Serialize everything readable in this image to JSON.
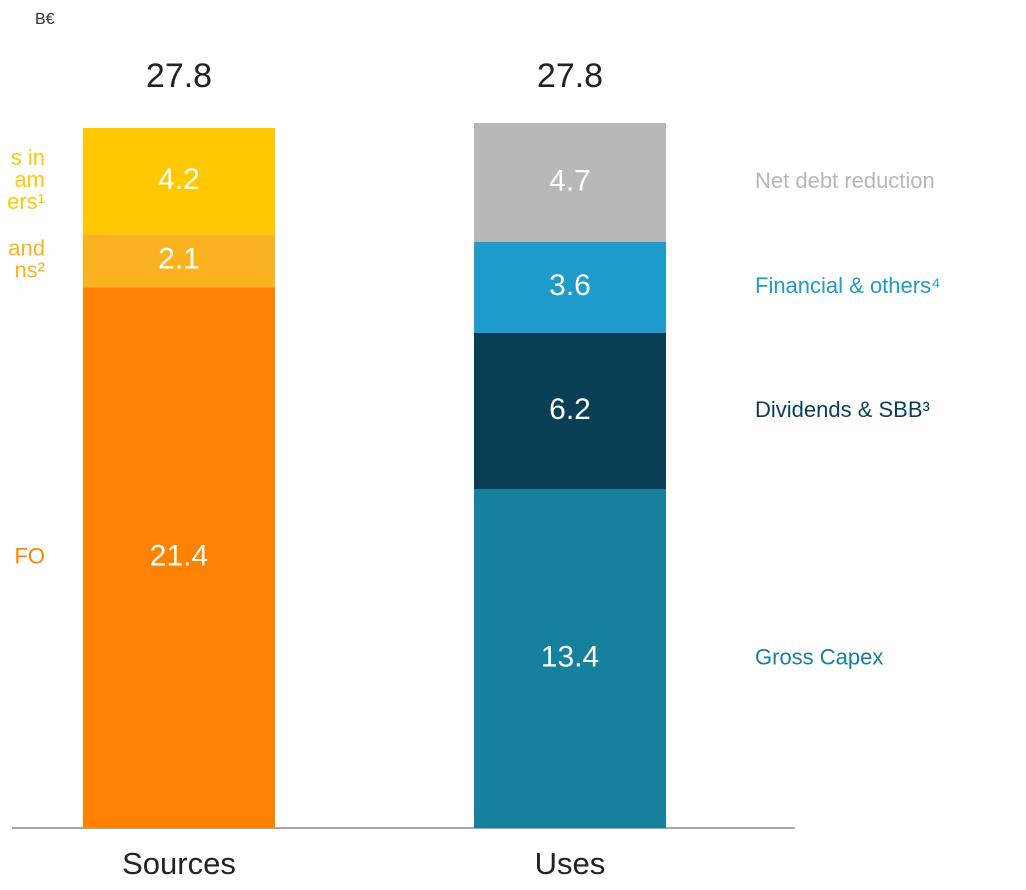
{
  "chart_data": {
    "type": "stacked_bar",
    "unit": "B€",
    "categories": [
      "Sources",
      "Uses"
    ],
    "totals": [
      27.8,
      27.8
    ],
    "ylim": [
      0,
      27.9
    ],
    "series": [
      {
        "name": "FO",
        "color": "#ff8200",
        "values": [
          21.4,
          null
        ]
      },
      {
        "name": [
          "and",
          "ns²"
        ],
        "color": "#fbb21f",
        "values": [
          2.1,
          null
        ]
      },
      {
        "name": [
          "s in",
          "am",
          "ers¹"
        ],
        "color": "#ffc800",
        "values": [
          4.2,
          null
        ]
      },
      {
        "name": "Gross Capex",
        "color": "#15819e",
        "values": [
          null,
          13.4
        ]
      },
      {
        "name": "Dividends & SBB³",
        "color": "#083f57",
        "values": [
          null,
          6.2
        ]
      },
      {
        "name": "Financial & others⁴",
        "color": "#1e9acb",
        "values": [
          null,
          3.6
        ]
      },
      {
        "name": "Net debt reduction",
        "color": "#b8b8b8",
        "values": [
          null,
          4.7
        ]
      }
    ]
  }
}
